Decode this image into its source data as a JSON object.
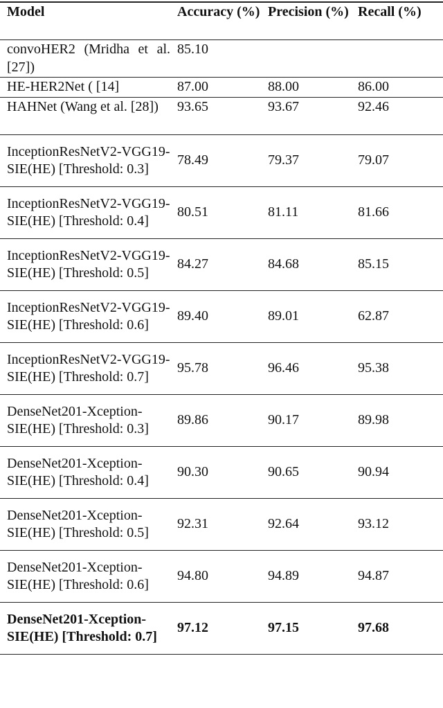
{
  "table": {
    "headers": [
      "Model",
      "Accuracy (%)",
      "Precision (%)",
      "Recall (%)"
    ],
    "rows": [
      {
        "model": "convoHER2 (Mridha et al. [27])",
        "accuracy": "85.10",
        "precision": "",
        "recall": ""
      },
      {
        "model": "HE-HER2Net ( [14]",
        "accuracy": "87.00",
        "precision": "88.00",
        "recall": "86.00"
      },
      {
        "model": "HAHNet (Wang et al. [28])",
        "accuracy": "93.65",
        "precision": "93.67",
        "recall": "92.46"
      },
      {
        "model": "InceptionResNetV2-VGG19-SIE(HE) [Threshold: 0.3]",
        "accuracy": "78.49",
        "precision": "79.37",
        "recall": "79.07"
      },
      {
        "model": "InceptionResNetV2-VGG19-SIE(HE) [Threshold: 0.4]",
        "accuracy": "80.51",
        "precision": "81.11",
        "recall": "81.66"
      },
      {
        "model": "InceptionResNetV2-VGG19-SIE(HE) [Threshold: 0.5]",
        "accuracy": "84.27",
        "precision": "84.68",
        "recall": "85.15"
      },
      {
        "model": "InceptionResNetV2-VGG19-SIE(HE) [Threshold: 0.6]",
        "accuracy": "89.40",
        "precision": "89.01",
        "recall": "62.87"
      },
      {
        "model": "InceptionResNetV2-VGG19-SIE(HE) [Threshold: 0.7]",
        "accuracy": "95.78",
        "precision": "96.46",
        "recall": "95.38"
      },
      {
        "model": "DenseNet201-Xception-SIE(HE) [Threshold: 0.3]",
        "accuracy": "89.86",
        "precision": "90.17",
        "recall": "89.98"
      },
      {
        "model": "DenseNet201-Xception-SIE(HE) [Threshold: 0.4]",
        "accuracy": "90.30",
        "precision": "90.65",
        "recall": "90.94"
      },
      {
        "model": "DenseNet201-Xception-SIE(HE) [Threshold: 0.5]",
        "accuracy": "92.31",
        "precision": "92.64",
        "recall": "93.12"
      },
      {
        "model": "DenseNet201-Xception-SIE(HE) [Threshold: 0.6]",
        "accuracy": "94.80",
        "precision": "94.89",
        "recall": "94.87"
      },
      {
        "model": "DenseNet201-Xception-SIE(HE) [Threshold: 0.7]",
        "accuracy": "97.12",
        "precision": "97.15",
        "recall": "97.68",
        "bold": true
      }
    ]
  }
}
